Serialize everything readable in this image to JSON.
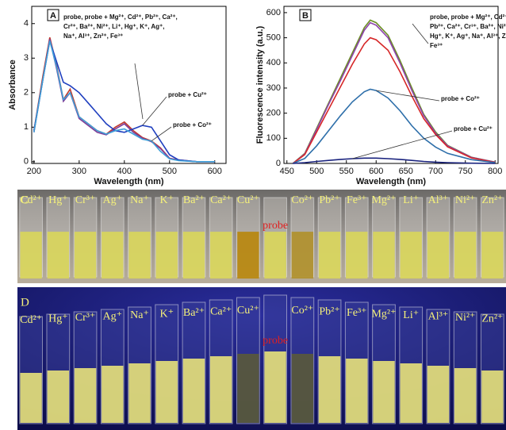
{
  "chart_data": [
    {
      "type": "line",
      "panel": "A",
      "xlabel": "Wavelength (nm)",
      "ylabel": "Absorbance",
      "x": [
        200,
        220,
        235,
        250,
        265,
        280,
        300,
        320,
        340,
        360,
        380,
        400,
        420,
        440,
        460,
        480,
        500,
        520,
        560,
        600
      ],
      "xlim": [
        195,
        625
      ],
      "xticks": [
        200,
        300,
        400,
        500,
        600
      ],
      "ylim": [
        -0.05,
        4.5
      ],
      "yticks": [
        0,
        1,
        2,
        3,
        4
      ],
      "annotation": [
        "probe, probe + Mg²⁺, Cd²⁺, Pb²⁺, Ca²⁺,",
        "Cr²⁺, Ba²⁺, Ni²⁺, Li⁺, Hg⁺, K⁺, Ag⁺,",
        "Na⁺, Al³⁺,  Zn²⁺, Fe³⁺"
      ],
      "series": [
        {
          "color": "#c0392b",
          "values": [
            0.9,
            2.5,
            3.6,
            2.8,
            1.8,
            2.1,
            1.3,
            1.1,
            0.9,
            0.8,
            1.0,
            1.15,
            0.9,
            0.7,
            0.6,
            0.4,
            0.1,
            0.05,
            0,
            0
          ]
        },
        {
          "color": "#7d3c98",
          "values": [
            0.85,
            2.4,
            3.55,
            2.7,
            1.75,
            2.0,
            1.25,
            1.05,
            0.85,
            0.78,
            0.95,
            1.1,
            0.85,
            0.68,
            0.58,
            0.38,
            0.1,
            0.04,
            0,
            0
          ]
        },
        {
          "name": "probe + Cu²⁺",
          "color": "#1f3fbf",
          "values": [
            0.9,
            2.4,
            3.5,
            2.9,
            2.3,
            2.2,
            2.0,
            1.7,
            1.4,
            1.1,
            0.9,
            0.85,
            0.95,
            1.05,
            1.0,
            0.6,
            0.2,
            0.05,
            0,
            0
          ]
        },
        {
          "name": "probe + Co²⁺",
          "color": "#3fa0d8",
          "values": [
            0.85,
            2.4,
            3.5,
            2.75,
            1.8,
            2.0,
            1.3,
            1.1,
            0.9,
            0.8,
            0.9,
            0.95,
            0.8,
            0.65,
            0.6,
            0.3,
            0.08,
            0.03,
            0,
            0
          ]
        }
      ]
    },
    {
      "type": "line",
      "panel": "B",
      "xlabel": "Wavelength (nm)",
      "ylabel": "Fluorescence intensity (a.u.)",
      "x": [
        460,
        480,
        500,
        520,
        540,
        560,
        580,
        590,
        600,
        620,
        640,
        660,
        680,
        700,
        720,
        760,
        800
      ],
      "xlim": [
        445,
        805
      ],
      "xticks": [
        450,
        500,
        550,
        600,
        650,
        700,
        750,
        800
      ],
      "ylim": [
        0,
        625
      ],
      "yticks": [
        0,
        100,
        200,
        300,
        400,
        500,
        600
      ],
      "annotation": [
        "probe, probe + Mg²⁺, Cd²⁺,",
        "Pb²⁺, Ca²⁺, Cr³⁺, Ba²⁺, Ni²⁺, Li⁺",
        "Hg⁺, K⁺, Ag⁺, Na⁺, Al³⁺, Zn²⁺,",
        "Fe³⁺"
      ],
      "series": [
        {
          "color": "#6b8e23",
          "values": [
            0,
            40,
            140,
            240,
            340,
            440,
            540,
            570,
            560,
            510,
            410,
            300,
            195,
            125,
            72,
            25,
            5
          ]
        },
        {
          "color": "#8e44ad",
          "values": [
            0,
            38,
            135,
            235,
            330,
            430,
            530,
            560,
            550,
            500,
            400,
            290,
            190,
            120,
            70,
            24,
            5
          ]
        },
        {
          "color": "#d62728",
          "values": [
            0,
            35,
            125,
            215,
            305,
            395,
            475,
            500,
            492,
            450,
            365,
            268,
            178,
            115,
            66,
            22,
            4
          ]
        },
        {
          "name": "probe + Co²⁺",
          "color": "#2e6faa",
          "values": [
            0,
            20,
            70,
            130,
            190,
            245,
            285,
            295,
            290,
            260,
            210,
            150,
            100,
            65,
            40,
            15,
            3
          ]
        },
        {
          "name": "probe + Cu²⁺",
          "color": "#1a237e",
          "values": [
            0,
            3,
            8,
            12,
            16,
            19,
            21,
            21,
            21,
            19,
            16,
            12,
            8,
            5,
            3,
            1,
            0
          ]
        }
      ]
    }
  ],
  "photo_c": {
    "panel": "C",
    "labels": [
      "Cd²⁺",
      "Hg⁺",
      "Cr³⁺",
      "Ag⁺",
      "Na⁺",
      "K⁺",
      "Ba²⁺",
      "Ca²⁺",
      "Cu²⁺",
      "Co²⁺",
      "Pb²⁺",
      "Fe³⁺",
      "Mg²⁺",
      "Li⁺",
      "Al³⁺",
      "Ni²⁺",
      "Zn²⁺"
    ],
    "center": "probe"
  },
  "photo_d": {
    "panel": "D",
    "labels": [
      "Cd²⁺",
      "Hg⁺",
      "Cr³⁺",
      "Ag⁺",
      "Na⁺",
      "K⁺",
      "Ba²⁺",
      "Ca²⁺",
      "Cu²⁺",
      "Co²⁺",
      "Pb²⁺",
      "Fe³⁺",
      "Mg²⁺",
      "Li⁺",
      "Al³⁺",
      "Ni²⁺",
      "Zn²⁺"
    ],
    "center": "probe"
  }
}
